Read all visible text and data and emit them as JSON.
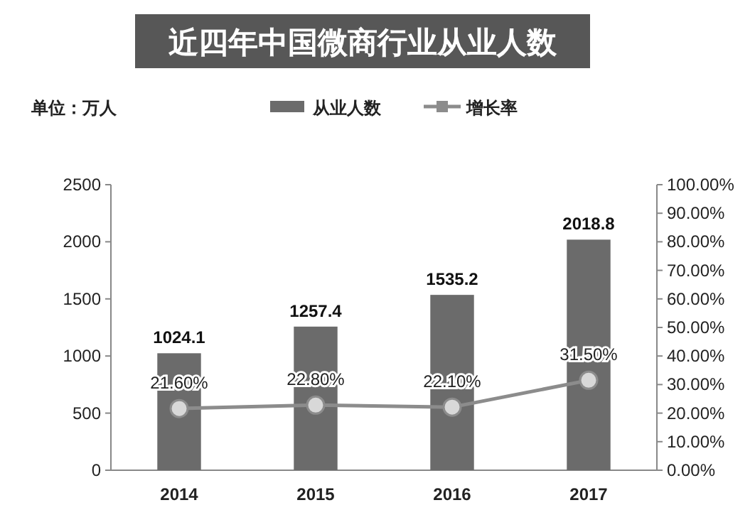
{
  "chart_data": {
    "type": "bar",
    "title": "近四年中国微商行业从业人数",
    "annotations": [
      "单位：万人"
    ],
    "categories": [
      "2014",
      "2015",
      "2016",
      "2017"
    ],
    "series": [
      {
        "name": "从业人数",
        "color": "#6b6b6b",
        "values": [
          1024.1,
          1257.4,
          1535.2,
          2018.8
        ],
        "value_labels": [
          "1024.1",
          "1257.4",
          "1535.2",
          "2018.8"
        ]
      },
      {
        "name": "增长率",
        "type": "line",
        "axis": "y2",
        "color": "#8c8c8c",
        "marker": "circle",
        "values": [
          21.6,
          22.8,
          22.1,
          31.5
        ],
        "value_labels": [
          "21.60%",
          "22.80%",
          "22.10%",
          "31.50%"
        ]
      }
    ],
    "ylim": [
      0,
      2500
    ],
    "yticks": [
      0,
      500,
      1000,
      1500,
      2000,
      2500
    ],
    "y2lim": [
      0,
      100
    ],
    "y2ticks": [
      {
        "value": 0,
        "label": "0.00%"
      },
      {
        "value": 10,
        "label": "10.00%"
      },
      {
        "value": 20,
        "label": "20.00%"
      },
      {
        "value": 30,
        "label": "30.00%"
      },
      {
        "value": 40,
        "label": "40.00%"
      },
      {
        "value": 50,
        "label": "50.00%"
      },
      {
        "value": 60,
        "label": "60.00%"
      },
      {
        "value": 70,
        "label": "70.00%"
      },
      {
        "value": 80,
        "label": "80.00%"
      },
      {
        "value": 90,
        "label": "90.00%"
      },
      {
        "value": 100,
        "label": "100.00%"
      }
    ],
    "legend": "top",
    "grid": false
  }
}
